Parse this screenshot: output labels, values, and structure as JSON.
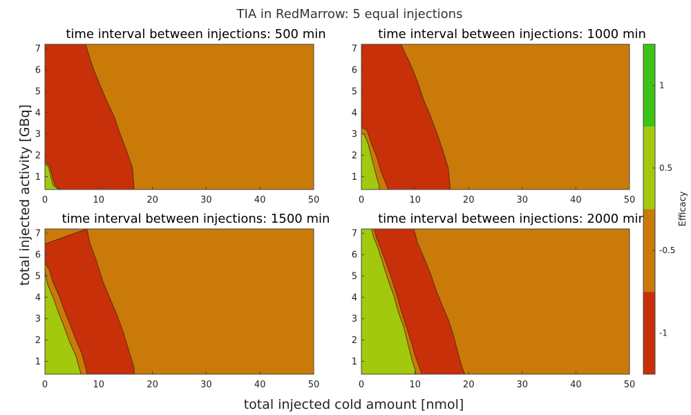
{
  "chart_data": {
    "type": "contour",
    "suptitle": "TIA in RedMarrow: 5 equal injections",
    "xlabel": "total injected cold amount [nmol]",
    "ylabel": "total injected activity [GBq]",
    "xlim": [
      0,
      50
    ],
    "ylim": [
      0.4,
      7.2
    ],
    "xticks": [
      "0",
      "10",
      "20",
      "30",
      "40",
      "50"
    ],
    "yticks": [
      "1",
      "2",
      "3",
      "4",
      "5",
      "6",
      "7"
    ],
    "grid": false,
    "colorbar": {
      "label": "Efficacy",
      "ticks": [
        "1",
        "0.5",
        "-0.5",
        "-1"
      ],
      "levels": [
        {
          "range": "-1.5 to -1",
          "color": "#c8300a"
        },
        {
          "range": "-1 to 0",
          "color": "#c97a08"
        },
        {
          "range": "0 to 1",
          "color": "#a2c90e"
        },
        {
          "range": "1 to 1.5",
          "color": "#3dc416"
        }
      ]
    },
    "panels": [
      {
        "title": "time interval between injections: 500 min",
        "green_boundary": [
          [
            0,
            1.6
          ],
          [
            0.7,
            1.45
          ],
          [
            1.1,
            1.0
          ],
          [
            1.5,
            0.6
          ],
          [
            2.5,
            0.4
          ]
        ],
        "orange_boundary": [
          [
            0,
            1.7
          ],
          [
            0.9,
            1.5
          ],
          [
            1.4,
            1.0
          ],
          [
            1.9,
            0.6
          ],
          [
            2.8,
            0.4
          ]
        ],
        "red_boundary": [
          [
            7.6,
            7.2
          ],
          [
            8.4,
            6.5
          ],
          [
            9.1,
            6.0
          ],
          [
            10.4,
            5.2
          ],
          [
            11.6,
            4.5
          ],
          [
            12.9,
            3.8
          ],
          [
            14.0,
            3.0
          ],
          [
            15.2,
            2.2
          ],
          [
            16.3,
            1.4
          ],
          [
            16.6,
            0.4
          ]
        ]
      },
      {
        "title": "time interval between injections: 1000 min",
        "green_boundary": [
          [
            0,
            3.0
          ],
          [
            0.5,
            3.0
          ],
          [
            1.3,
            2.5
          ],
          [
            1.9,
            1.9
          ],
          [
            2.6,
            1.2
          ],
          [
            3.3,
            0.6
          ],
          [
            3.3,
            0.4
          ]
        ],
        "orange_boundary": [
          [
            0,
            3.3
          ],
          [
            1.0,
            3.2
          ],
          [
            1.8,
            2.6
          ],
          [
            2.9,
            1.9
          ],
          [
            3.7,
            1.2
          ],
          [
            4.7,
            0.6
          ],
          [
            5.0,
            0.4
          ]
        ],
        "red_boundary": [
          [
            7.4,
            7.2
          ],
          [
            8.1,
            6.8
          ],
          [
            9.1,
            6.3
          ],
          [
            10.4,
            5.5
          ],
          [
            11.6,
            4.6
          ],
          [
            12.8,
            3.9
          ],
          [
            14.0,
            3.1
          ],
          [
            15.1,
            2.3
          ],
          [
            16.2,
            1.4
          ],
          [
            16.6,
            0.4
          ]
        ]
      },
      {
        "title": "time interval between injections: 1500 min",
        "green_boundary": [
          [
            0,
            5.2
          ],
          [
            0.5,
            4.6
          ],
          [
            1.5,
            4.0
          ],
          [
            2.5,
            3.3
          ],
          [
            3.6,
            2.6
          ],
          [
            4.6,
            1.9
          ],
          [
            5.7,
            1.3
          ],
          [
            6.5,
            0.6
          ],
          [
            6.7,
            0.4
          ]
        ],
        "orange_boundary": [
          [
            0,
            5.6
          ],
          [
            0.8,
            5.3
          ],
          [
            1.5,
            4.7
          ],
          [
            2.6,
            4.1
          ],
          [
            3.6,
            3.4
          ],
          [
            4.7,
            2.7
          ],
          [
            5.8,
            2.0
          ],
          [
            6.8,
            1.4
          ],
          [
            7.6,
            0.7
          ],
          [
            7.8,
            0.4
          ]
        ],
        "red_boundary": [
          [
            0,
            6.5
          ],
          [
            7.8,
            7.2
          ],
          [
            8.4,
            6.5
          ],
          [
            9.6,
            5.7
          ],
          [
            10.7,
            4.8
          ],
          [
            12.0,
            4.0
          ],
          [
            13.2,
            3.3
          ],
          [
            14.4,
            2.5
          ],
          [
            15.5,
            1.6
          ],
          [
            16.6,
            0.7
          ],
          [
            16.6,
            0.4
          ]
        ]
      },
      {
        "title": "time interval between injections: 2000 min",
        "green_boundary": [
          [
            1.9,
            7.2
          ],
          [
            2.3,
            6.8
          ],
          [
            3.1,
            6.3
          ],
          [
            4.0,
            5.6
          ],
          [
            5.0,
            4.8
          ],
          [
            6.0,
            4.1
          ],
          [
            6.9,
            3.3
          ],
          [
            7.9,
            2.6
          ],
          [
            8.7,
            1.8
          ],
          [
            9.4,
            1.1
          ],
          [
            10.0,
            0.6
          ],
          [
            10.2,
            0.4
          ]
        ],
        "orange_boundary": [
          [
            2.4,
            7.2
          ],
          [
            2.8,
            6.8
          ],
          [
            3.6,
            6.3
          ],
          [
            4.6,
            5.6
          ],
          [
            5.6,
            4.9
          ],
          [
            6.6,
            4.1
          ],
          [
            7.4,
            3.4
          ],
          [
            8.4,
            2.6
          ],
          [
            9.3,
            1.9
          ],
          [
            10.1,
            1.2
          ],
          [
            11.0,
            0.6
          ],
          [
            11.2,
            0.4
          ]
        ],
        "red_boundary": [
          [
            9.8,
            7.2
          ],
          [
            10.4,
            6.6
          ],
          [
            11.6,
            5.9
          ],
          [
            12.9,
            5.1
          ],
          [
            14.0,
            4.3
          ],
          [
            15.1,
            3.6
          ],
          [
            16.3,
            2.9
          ],
          [
            17.3,
            2.1
          ],
          [
            18.0,
            1.4
          ],
          [
            18.8,
            0.7
          ],
          [
            19.3,
            0.4
          ]
        ]
      }
    ]
  }
}
